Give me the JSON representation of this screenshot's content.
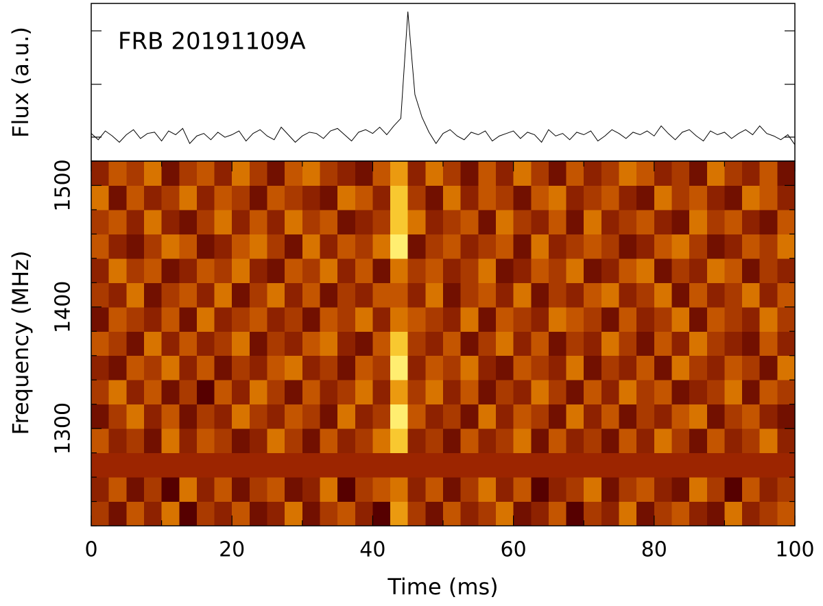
{
  "chart_data": [
    {
      "type": "line",
      "title": "FRB 20191109A",
      "ylabel": "Flux (a.u.)",
      "color": "#000000",
      "ylim": [
        -1.9,
        10.65
      ],
      "xlim": [
        0,
        100
      ],
      "x": [
        0,
        1,
        2,
        3,
        4,
        5,
        6,
        7,
        8,
        9,
        10,
        11,
        12,
        13,
        14,
        15,
        16,
        17,
        18,
        19,
        20,
        21,
        22,
        23,
        24,
        25,
        26,
        27,
        28,
        29,
        30,
        31,
        32,
        33,
        34,
        35,
        36,
        37,
        38,
        39,
        40,
        41,
        42,
        43,
        44,
        45,
        46,
        47,
        48,
        49,
        50,
        51,
        52,
        53,
        54,
        55,
        56,
        57,
        58,
        59,
        60,
        61,
        62,
        63,
        64,
        65,
        66,
        67,
        68,
        69,
        70,
        71,
        72,
        73,
        74,
        75,
        76,
        77,
        78,
        79,
        80,
        81,
        82,
        83,
        84,
        85,
        86,
        87,
        88,
        89,
        90,
        91,
        92,
        93,
        94,
        95,
        96,
        97,
        98,
        99,
        100
      ],
      "values": [
        0.3,
        -0.2,
        0.5,
        0.1,
        -0.4,
        0.2,
        0.6,
        -0.1,
        0.3,
        0.4,
        -0.3,
        0.5,
        0.2,
        0.7,
        -0.5,
        0.1,
        0.3,
        -0.2,
        0.4,
        0.0,
        0.2,
        0.5,
        -0.3,
        0.3,
        0.6,
        0.1,
        -0.2,
        0.8,
        0.2,
        -0.4,
        0.1,
        0.4,
        0.3,
        -0.1,
        0.5,
        0.7,
        0.2,
        -0.3,
        0.4,
        0.6,
        0.3,
        0.8,
        0.2,
        0.9,
        1.5,
        10.0,
        3.4,
        1.6,
        0.4,
        -0.5,
        0.3,
        0.6,
        0.1,
        -0.2,
        0.4,
        0.2,
        0.5,
        -0.3,
        0.1,
        0.3,
        0.5,
        -0.1,
        0.4,
        0.2,
        -0.4,
        0.6,
        0.1,
        0.3,
        -0.2,
        0.4,
        0.2,
        0.5,
        -0.3,
        0.1,
        0.6,
        0.3,
        -0.1,
        0.4,
        0.2,
        0.5,
        0.1,
        0.9,
        0.3,
        -0.2,
        0.4,
        0.6,
        0.1,
        -0.3,
        0.5,
        0.2,
        0.4,
        -0.1,
        0.3,
        0.6,
        0.2,
        0.9,
        0.3,
        0.1,
        -0.2,
        0.2,
        -0.6
      ]
    },
    {
      "type": "heatmap",
      "xlabel": "Time (ms)",
      "ylabel": "Frequency (MHz)",
      "xlim": [
        0,
        100
      ],
      "xticks": [
        0,
        20,
        40,
        60,
        80,
        100
      ],
      "xminorticks": [
        10,
        30,
        50,
        70,
        90
      ],
      "ylim": [
        1220,
        1520
      ],
      "yticks": [
        1300,
        1400,
        1500
      ],
      "yminorticks": [
        1220,
        1240,
        1260,
        1280,
        1320,
        1340,
        1360,
        1380,
        1420,
        1440,
        1460,
        1480,
        1520
      ],
      "time_bins": [
        0,
        2.5,
        5,
        7.5,
        10,
        12.5,
        15,
        17.5,
        20,
        22.5,
        25,
        27.5,
        30,
        32.5,
        35,
        37.5,
        40,
        42.5,
        45,
        47.5,
        50,
        52.5,
        55,
        57.5,
        60,
        62.5,
        65,
        67.5,
        70,
        72.5,
        75,
        77.5,
        80,
        82.5,
        85,
        87.5,
        90,
        92.5,
        95,
        97.5,
        100
      ],
      "freq_bins": [
        1220,
        1240,
        1260,
        1280,
        1300,
        1320,
        1340,
        1360,
        1380,
        1400,
        1420,
        1440,
        1460,
        1480,
        1500,
        1520
      ],
      "colormap": [
        "#3c0000",
        "#560000",
        "#721000",
        "#8e2200",
        "#aa3a00",
        "#c45500",
        "#d87400",
        "#eb9a10",
        "#f8c830",
        "#ffee70"
      ],
      "mask_color": "#9c2500",
      "intensity": [
        [
          4,
          2,
          5,
          3,
          6,
          1,
          4,
          3,
          5,
          2,
          3,
          6,
          2,
          4,
          5,
          3,
          1,
          7,
          4,
          2,
          5,
          3,
          4,
          6,
          2,
          3,
          5,
          1,
          4,
          3,
          6,
          2,
          4,
          5,
          3,
          2,
          6,
          3,
          4,
          5
        ],
        [
          3,
          5,
          2,
          4,
          1,
          6,
          3,
          5,
          2,
          4,
          5,
          2,
          3,
          6,
          1,
          4,
          5,
          6,
          3,
          5,
          2,
          4,
          6,
          3,
          5,
          1,
          3,
          4,
          6,
          2,
          4,
          5,
          3,
          2,
          6,
          4,
          1,
          5,
          3,
          4
        ],
        [
          null,
          null,
          null,
          null,
          null,
          null,
          null,
          null,
          null,
          null,
          null,
          null,
          null,
          null,
          null,
          null,
          null,
          null,
          null,
          null,
          null,
          null,
          null,
          null,
          null,
          null,
          null,
          null,
          null,
          null,
          null,
          null,
          null,
          null,
          null,
          null,
          null,
          null,
          null,
          null
        ],
        [
          5,
          3,
          4,
          2,
          6,
          3,
          5,
          4,
          2,
          3,
          6,
          4,
          2,
          5,
          3,
          4,
          6,
          8,
          3,
          4,
          2,
          5,
          3,
          4,
          6,
          2,
          5,
          3,
          4,
          2,
          5,
          3,
          6,
          4,
          2,
          5,
          3,
          4,
          6,
          3
        ],
        [
          2,
          4,
          6,
          3,
          5,
          2,
          4,
          3,
          6,
          4,
          3,
          5,
          4,
          2,
          6,
          3,
          4,
          9,
          5,
          3,
          4,
          2,
          6,
          3,
          5,
          4,
          2,
          6,
          3,
          5,
          2,
          4,
          3,
          5,
          6,
          2,
          4,
          5,
          3,
          2
        ],
        [
          4,
          6,
          3,
          5,
          2,
          4,
          1,
          5,
          3,
          6,
          4,
          2,
          5,
          3,
          4,
          6,
          3,
          7,
          4,
          6,
          3,
          5,
          2,
          4,
          3,
          6,
          4,
          2,
          5,
          3,
          6,
          4,
          5,
          2,
          3,
          4,
          6,
          2,
          5,
          4
        ],
        [
          3,
          2,
          5,
          4,
          6,
          3,
          5,
          2,
          4,
          3,
          5,
          6,
          3,
          4,
          2,
          5,
          4,
          9,
          3,
          5,
          4,
          6,
          3,
          2,
          5,
          4,
          3,
          6,
          2,
          4,
          3,
          5,
          2,
          6,
          4,
          3,
          5,
          4,
          2,
          6
        ],
        [
          5,
          4,
          2,
          6,
          3,
          5,
          3,
          4,
          6,
          2,
          4,
          3,
          5,
          6,
          3,
          2,
          5,
          8,
          4,
          3,
          5,
          2,
          4,
          6,
          3,
          5,
          2,
          4,
          3,
          6,
          4,
          2,
          5,
          3,
          6,
          4,
          3,
          2,
          5,
          3
        ],
        [
          2,
          5,
          4,
          3,
          5,
          2,
          6,
          3,
          4,
          5,
          3,
          4,
          2,
          5,
          4,
          6,
          3,
          6,
          5,
          4,
          3,
          6,
          2,
          5,
          4,
          3,
          6,
          5,
          4,
          2,
          5,
          3,
          4,
          6,
          2,
          5,
          4,
          3,
          6,
          4
        ],
        [
          4,
          3,
          6,
          2,
          4,
          5,
          3,
          6,
          2,
          4,
          6,
          3,
          5,
          2,
          4,
          3,
          5,
          5,
          3,
          6,
          2,
          4,
          5,
          3,
          6,
          2,
          4,
          3,
          5,
          6,
          3,
          4,
          6,
          2,
          5,
          3,
          4,
          6,
          3,
          5
        ],
        [
          3,
          6,
          4,
          5,
          2,
          3,
          5,
          4,
          6,
          3,
          2,
          5,
          4,
          6,
          3,
          5,
          2,
          6,
          4,
          5,
          3,
          4,
          6,
          2,
          3,
          5,
          4,
          6,
          2,
          3,
          5,
          6,
          2,
          4,
          3,
          6,
          5,
          2,
          4,
          3
        ],
        [
          5,
          3,
          2,
          4,
          6,
          5,
          2,
          3,
          5,
          6,
          4,
          2,
          6,
          3,
          5,
          4,
          6,
          9,
          2,
          4,
          5,
          3,
          4,
          5,
          2,
          6,
          3,
          4,
          5,
          4,
          2,
          3,
          5,
          6,
          4,
          2,
          3,
          5,
          4,
          6
        ],
        [
          4,
          5,
          3,
          6,
          3,
          2,
          4,
          6,
          3,
          5,
          3,
          6,
          4,
          5,
          2,
          3,
          4,
          8,
          6,
          3,
          4,
          5,
          2,
          6,
          4,
          3,
          5,
          2,
          6,
          3,
          4,
          5,
          3,
          2,
          6,
          4,
          5,
          3,
          2,
          5
        ],
        [
          6,
          2,
          5,
          3,
          4,
          6,
          3,
          5,
          4,
          2,
          5,
          4,
          3,
          2,
          6,
          5,
          3,
          8,
          4,
          2,
          6,
          3,
          5,
          4,
          2,
          5,
          6,
          3,
          4,
          5,
          3,
          2,
          6,
          4,
          5,
          3,
          2,
          6,
          5,
          3
        ],
        [
          3,
          5,
          4,
          6,
          2,
          4,
          5,
          3,
          6,
          4,
          2,
          5,
          6,
          4,
          3,
          2,
          5,
          7,
          3,
          6,
          4,
          2,
          5,
          3,
          6,
          4,
          2,
          5,
          3,
          4,
          6,
          5,
          3,
          4,
          2,
          6,
          4,
          3,
          5,
          2
        ]
      ]
    }
  ]
}
